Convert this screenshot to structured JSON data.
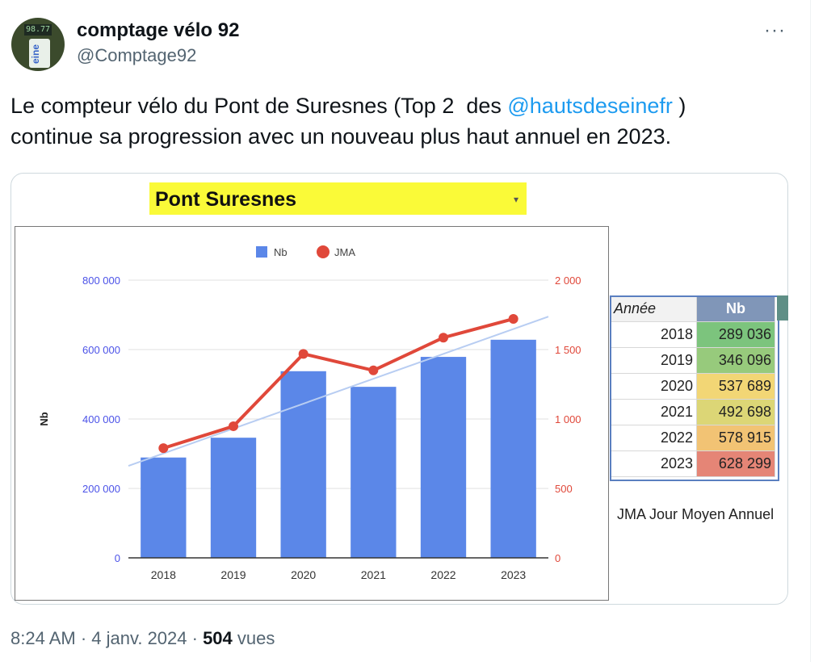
{
  "tweet": {
    "author_name": "comptage vélo 92",
    "handle": "@Comptage92",
    "more_icon": "···",
    "text_before": "Le compteur vélo du Pont de Suresnes (Top 2  des ",
    "mention": "@hautsdeseinefr",
    "text_after": " )\ncontinue sa progression avec un nouveau plus haut annuel en 2023.",
    "time": "8:24 AM · 4 janv. 2024 · ",
    "views_count": "504",
    "views_label": " vues"
  },
  "avatar": {
    "screen_text": "98.77",
    "panel_text": "eine"
  },
  "image": {
    "title": "Pont Suresnes",
    "dropdown_icon": "▾",
    "table": {
      "headers": [
        "Année",
        "Nb"
      ],
      "rows": [
        {
          "year": "2018",
          "nb": "289 036",
          "color": "#7cc47d"
        },
        {
          "year": "2019",
          "nb": "346 096",
          "color": "#97ca7c"
        },
        {
          "year": "2020",
          "nb": "537 689",
          "color": "#f2d675"
        },
        {
          "year": "2021",
          "nb": "492 698",
          "color": "#dcd676"
        },
        {
          "year": "2022",
          "nb": "578 915",
          "color": "#f2c374"
        },
        {
          "year": "2023",
          "nb": "628 299",
          "color": "#e58576"
        }
      ]
    },
    "note": "JMA  Jour Moyen Annuel"
  },
  "chart_data": {
    "type": "bar",
    "categories": [
      "2018",
      "2019",
      "2020",
      "2021",
      "2022",
      "2023"
    ],
    "series": [
      {
        "name": "Nb",
        "type": "bar",
        "axis": "left",
        "color": "#5b87e8",
        "values": [
          289036,
          346096,
          537689,
          492698,
          578915,
          628299
        ]
      },
      {
        "name": "JMA",
        "type": "line",
        "axis": "right",
        "color": "#e0483a",
        "values": [
          790,
          948,
          1469,
          1350,
          1586,
          1721
        ]
      }
    ],
    "trendline": {
      "color": "#b8cdf2",
      "axis": "left",
      "start": 265000,
      "end": 695000
    },
    "ylabel": "Nb",
    "ylim": [
      0,
      800000
    ],
    "y_ticks": [
      "0",
      "200 000",
      "400 000",
      "600 000",
      "800 000"
    ],
    "y_tick_values": [
      0,
      200000,
      400000,
      600000,
      800000
    ],
    "y_tick_color": "#4b52e8",
    "y2lim": [
      0,
      2000
    ],
    "y2_ticks": [
      "0",
      "500",
      "1 000",
      "1 500",
      "2 000"
    ],
    "y2_tick_values": [
      0,
      500,
      1000,
      1500,
      2000
    ],
    "y2_tick_color": "#e0483a",
    "grid": true,
    "legend": "top"
  }
}
